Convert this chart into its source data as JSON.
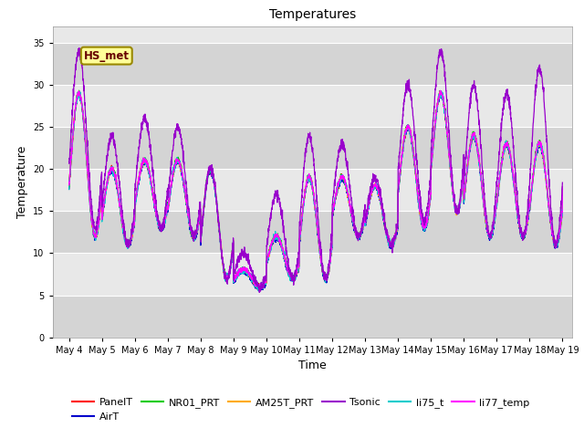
{
  "title": "Temperatures",
  "xlabel": "Time",
  "ylabel": "Temperature",
  "xlim_days": [
    3.5,
    19.3
  ],
  "ylim": [
    0,
    37
  ],
  "yticks": [
    0,
    5,
    10,
    15,
    20,
    25,
    30,
    35
  ],
  "xtick_labels": [
    "May 4",
    "May 5",
    "May 6",
    "May 7",
    "May 8",
    "May 9",
    "May 10",
    "May 11",
    "May 12",
    "May 13",
    "May 14",
    "May 15",
    "May 16",
    "May 17",
    "May 18",
    "May 19"
  ],
  "xtick_positions": [
    4,
    5,
    6,
    7,
    8,
    9,
    10,
    11,
    12,
    13,
    14,
    15,
    16,
    17,
    18,
    19
  ],
  "series_colors": {
    "PanelT": "#ff0000",
    "AirT": "#0000cc",
    "NR01_PRT": "#00cc00",
    "AM25T_PRT": "#ffaa00",
    "Tsonic": "#9900cc",
    "li75_t": "#00cccc",
    "li77_temp": "#ff00ff"
  },
  "legend_entries": [
    "PanelT",
    "AirT",
    "NR01_PRT",
    "AM25T_PRT",
    "Tsonic",
    "li75_t",
    "li77_temp"
  ],
  "annotation_text": "HS_met",
  "background_color": "#e8e8e8",
  "band_light_color": "#d8d8d8",
  "grid_color": "#ffffff",
  "title_fontsize": 10,
  "axis_fontsize": 9,
  "tick_fontsize": 7
}
